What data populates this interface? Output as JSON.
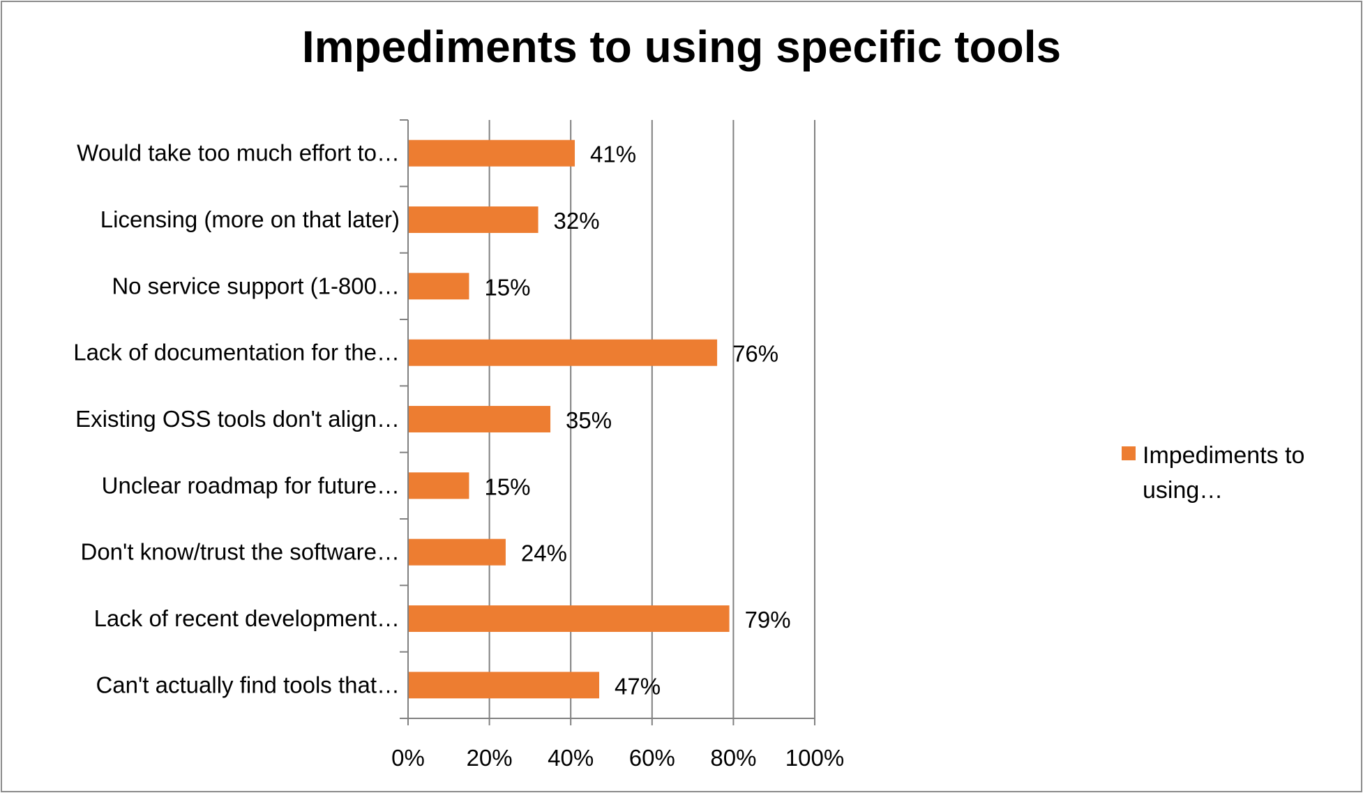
{
  "colors": {
    "bar": "#ED7D31",
    "grid": "#808080",
    "text": "#000000",
    "border": "#8C8C8C"
  },
  "legend": {
    "label": "Impediments to using…"
  },
  "chart_data": {
    "type": "bar",
    "orientation": "horizontal",
    "title": "Impediments to using specific tools",
    "xlabel": "",
    "ylabel": "",
    "xlim": [
      0,
      100
    ],
    "x_ticks": [
      "0%",
      "20%",
      "40%",
      "60%",
      "80%",
      "100%"
    ],
    "grid": "vertical major gridlines",
    "legend_position": "right",
    "categories": [
      "Would take too much effort to…",
      "Licensing (more on that later)",
      "No service support (1-800…",
      "Lack of documentation for the…",
      "Existing OSS tools don't align…",
      "Unclear roadmap for future…",
      "Don't know/trust the software…",
      "Lack of recent development…",
      "Can't actually find tools that…"
    ],
    "series": [
      {
        "name": "Impediments to using…",
        "values": [
          41,
          32,
          15,
          76,
          35,
          15,
          24,
          79,
          47
        ],
        "labels": [
          "41%",
          "32%",
          "15%",
          "76%",
          "35%",
          "15%",
          "24%",
          "79%",
          "47%"
        ]
      }
    ]
  }
}
